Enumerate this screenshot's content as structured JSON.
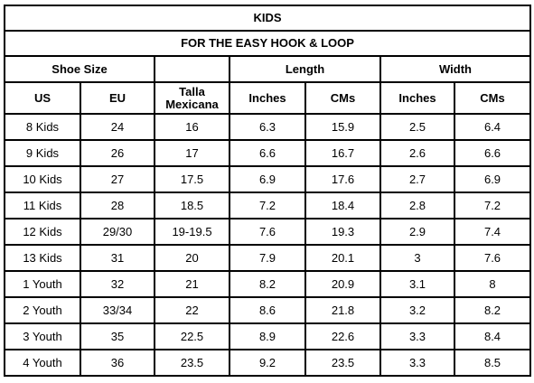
{
  "title": "KIDS",
  "subtitle": "FOR THE EASY HOOK & LOOP",
  "groups": {
    "shoe_size": "Shoe Size",
    "length": "Length",
    "width": "Width"
  },
  "columns": [
    "US",
    "EU",
    "Talla Mexicana",
    "Inches",
    "CMs",
    "Inches",
    "CMs"
  ],
  "rows": [
    [
      "8 Kids",
      "24",
      "16",
      "6.3",
      "15.9",
      "2.5",
      "6.4"
    ],
    [
      "9 Kids",
      "26",
      "17",
      "6.6",
      "16.7",
      "2.6",
      "6.6"
    ],
    [
      "10 Kids",
      "27",
      "17.5",
      "6.9",
      "17.6",
      "2.7",
      "6.9"
    ],
    [
      "11 Kids",
      "28",
      "18.5",
      "7.2",
      "18.4",
      "2.8",
      "7.2"
    ],
    [
      "12 Kids",
      "29/30",
      "19-19.5",
      "7.6",
      "19.3",
      "2.9",
      "7.4"
    ],
    [
      "13 Kids",
      "31",
      "20",
      "7.9",
      "20.1",
      "3",
      "7.6"
    ],
    [
      "1 Youth",
      "32",
      "21",
      "8.2",
      "20.9",
      "3.1",
      "8"
    ],
    [
      "2 Youth",
      "33/34",
      "22",
      "8.6",
      "21.8",
      "3.2",
      "8.2"
    ],
    [
      "3 Youth",
      "35",
      "22.5",
      "8.9",
      "22.6",
      "3.3",
      "8.4"
    ],
    [
      "4 Youth",
      "36",
      "23.5",
      "9.2",
      "23.5",
      "3.3",
      "8.5"
    ]
  ]
}
